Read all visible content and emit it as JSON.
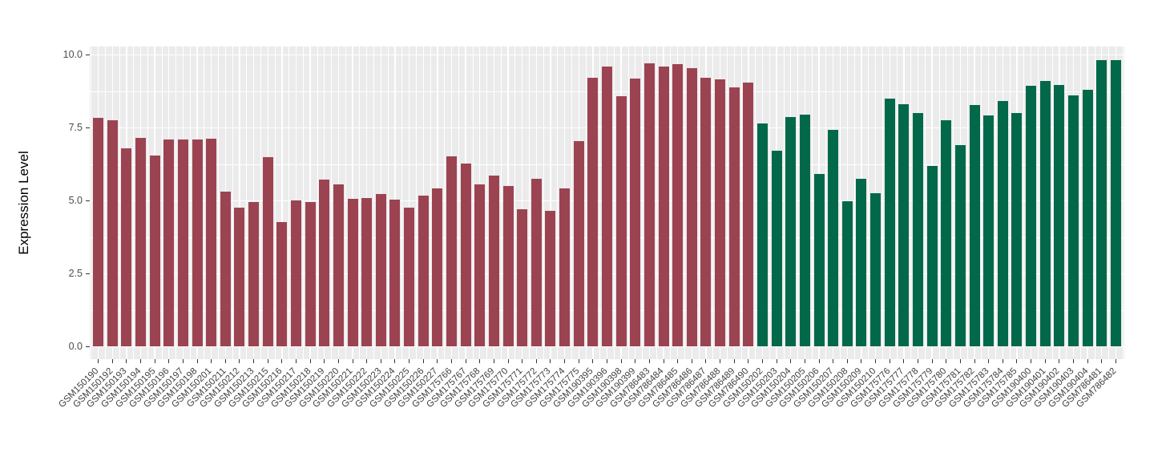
{
  "chart_data": {
    "type": "bar",
    "title": "",
    "xlabel": "",
    "ylabel": "Expression Level",
    "ylim": [
      0,
      10
    ],
    "yticks": [
      {
        "label": "0.0",
        "value": 0
      },
      {
        "label": "2.5",
        "value": 2.5
      },
      {
        "label": "5.0",
        "value": 5
      },
      {
        "label": "7.5",
        "value": 7.5
      },
      {
        "label": "10.0",
        "value": 10
      }
    ],
    "grid": true,
    "legend": false,
    "categories": [
      "GSM150190",
      "GSM150192",
      "GSM150193",
      "GSM150194",
      "GSM150195",
      "GSM150196",
      "GSM150197",
      "GSM150198",
      "GSM150201",
      "GSM150211",
      "GSM150212",
      "GSM150213",
      "GSM150215",
      "GSM150216",
      "GSM150217",
      "GSM150218",
      "GSM150219",
      "GSM150220",
      "GSM150221",
      "GSM150222",
      "GSM150223",
      "GSM150224",
      "GSM150225",
      "GSM150226",
      "GSM150227",
      "GSM175766",
      "GSM175767",
      "GSM175768",
      "GSM175769",
      "GSM175770",
      "GSM175771",
      "GSM175772",
      "GSM175773",
      "GSM175774",
      "GSM175775",
      "GSM190395",
      "GSM190396",
      "GSM190398",
      "GSM190399",
      "GSM786483",
      "GSM786484",
      "GSM786485",
      "GSM786486",
      "GSM786487",
      "GSM786488",
      "GSM786489",
      "GSM786490",
      "GSM150202",
      "GSM150203",
      "GSM150204",
      "GSM150205",
      "GSM150206",
      "GSM150207",
      "GSM150208",
      "GSM150209",
      "GSM150210",
      "GSM175776",
      "GSM175777",
      "GSM175778",
      "GSM175779",
      "GSM175780",
      "GSM175781",
      "GSM175782",
      "GSM175783",
      "GSM175784",
      "GSM175785",
      "GSM190400",
      "GSM190401",
      "GSM190402",
      "GSM190403",
      "GSM190404",
      "GSM786481",
      "GSM786482"
    ],
    "values": [
      7.85,
      7.75,
      6.8,
      7.15,
      6.55,
      7.1,
      7.1,
      7.1,
      7.12,
      5.32,
      4.76,
      4.95,
      6.5,
      4.27,
      5.02,
      4.95,
      5.72,
      5.55,
      5.08,
      5.1,
      5.22,
      5.05,
      4.77,
      5.18,
      5.42,
      6.52,
      6.27,
      5.57,
      5.86,
      5.52,
      4.7,
      5.75,
      4.67,
      5.42,
      7.05,
      9.22,
      9.59,
      8.58,
      9.19,
      9.71,
      9.6,
      9.68,
      9.55,
      9.22,
      9.15,
      8.9,
      9.05,
      7.65,
      6.72,
      7.88,
      7.95,
      5.93,
      7.42,
      4.98,
      5.75,
      5.27,
      8.5,
      8.3,
      8.02,
      6.2,
      7.75,
      6.92,
      8.28,
      7.93,
      8.43,
      8.0,
      8.93,
      9.1,
      8.97,
      8.62,
      8.8,
      9.83,
      9.83
    ],
    "groups": [
      {
        "color": "#9C4352",
        "from": 0,
        "to": 46
      },
      {
        "color": "#02684A",
        "from": 47,
        "to": 72
      }
    ]
  },
  "styles": {
    "panel_bg": "#EBEBEB",
    "grid_color": "#FFFFFF",
    "tick_color": "#333333",
    "tick_label_color": "#4D4D4D",
    "axis_title_color": "#000000",
    "bar_red": "#9C4352",
    "bar_green": "#02684A"
  }
}
